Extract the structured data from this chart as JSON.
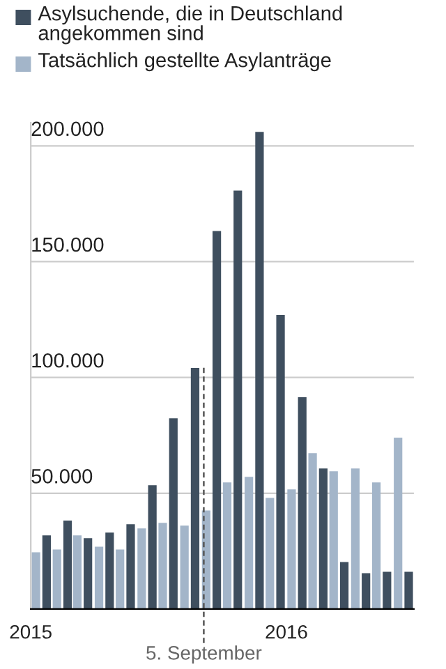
{
  "chart_data": {
    "type": "bar",
    "x": [
      "2015-01-16",
      "2015-02-15",
      "2015-03-16",
      "2015-04-16",
      "2015-05-16",
      "2015-06-16",
      "2015-07-16",
      "2015-08-16",
      "2015-09-16",
      "2015-10-16",
      "2015-11-16",
      "2015-12-16",
      "2016-01-16",
      "2016-02-15",
      "2016-03-16",
      "2016-04-16",
      "2016-05-16",
      "2016-06-16"
    ],
    "series": [
      {
        "name": "Asylsuchende, die in Deutschland angekommen sind",
        "color": "#3f4f5f",
        "values": [
          31800,
          38200,
          30600,
          33000,
          36600,
          53500,
          82400,
          104100,
          163200,
          180700,
          206000,
          127000,
          91500,
          60700,
          20300,
          15500,
          16100,
          16100
        ]
      },
      {
        "name": "Tatsächlich gestellte Asylanträge",
        "color": "#a3b5c9",
        "values": [
          24500,
          25700,
          31800,
          26900,
          25700,
          34800,
          37200,
          36000,
          42600,
          54700,
          57100,
          48000,
          51700,
          67300,
          59500,
          60700,
          54700,
          74000
        ]
      }
    ],
    "xlim": [
      "2015-01-01",
      "2016-07-01"
    ],
    "xticks": [
      {
        "value": "2015-01-01",
        "label": "2015"
      },
      {
        "value": "2016-01-01",
        "label": "2016"
      }
    ],
    "ylim": [
      0,
      210000
    ],
    "yticks": [
      {
        "value": 50000,
        "label": "50.000"
      },
      {
        "value": 100000,
        "label": "100.000"
      },
      {
        "value": 150000,
        "label": "150.000"
      },
      {
        "value": 200000,
        "label": "200.000"
      }
    ],
    "ref_lines": [
      {
        "axis": "x",
        "value": "2015-09-05",
        "label": "5. September",
        "line_style": "dashed",
        "color": "#555555"
      }
    ],
    "grid": "y",
    "legend": "top"
  }
}
